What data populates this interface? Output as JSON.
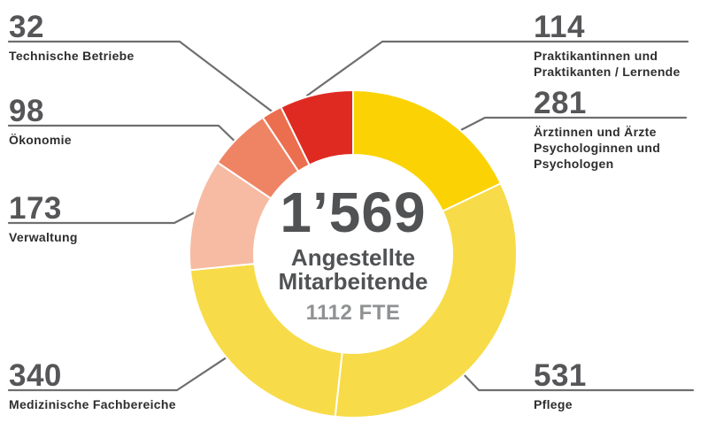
{
  "chart_data": {
    "type": "donut",
    "title": "Angestellte Mitarbeitende",
    "total_value": 1569,
    "center": {
      "total": "1’569",
      "caption_lines": [
        "Angestellte",
        "Mitarbeitende"
      ],
      "fte": "1112 FTE"
    },
    "legend_position": "callouts-around-donut",
    "segments": [
      {
        "id": "aerzte-psychologen",
        "label": "Ärztinnen und Ärzte Psychologinnen und Psychologen",
        "value": 281,
        "color": "#FBD304"
      },
      {
        "id": "pflege",
        "label": "Pflege",
        "value": 531,
        "color": "#F8DB48"
      },
      {
        "id": "medizinische-fachbereiche",
        "label": "Medizinische Fachbereiche",
        "value": 340,
        "color": "#F8DB48"
      },
      {
        "id": "verwaltung",
        "label": "Verwaltung",
        "value": 173,
        "color": "#F6BBA2"
      },
      {
        "id": "oekonomie",
        "label": "Ökonomie",
        "value": 98,
        "color": "#EF8465"
      },
      {
        "id": "technische-betriebe",
        "label": "Technische Betriebe",
        "value": 32,
        "color": "#EB6E4E"
      },
      {
        "id": "praktikanten-lernende",
        "label": "Praktikantinnen und Praktikanten / Lernende",
        "value": 114,
        "color": "#DF2A21"
      }
    ]
  },
  "callouts": [
    {
      "id": "technische-betriebe",
      "value": "32",
      "lines": [
        "Technische Betriebe"
      ]
    },
    {
      "id": "oekonomie",
      "value": "98",
      "lines": [
        "Ökonomie"
      ]
    },
    {
      "id": "verwaltung",
      "value": "173",
      "lines": [
        "Verwaltung"
      ]
    },
    {
      "id": "medizinische-fachbereiche",
      "value": "340",
      "lines": [
        "Medizinische Fachbereiche"
      ]
    },
    {
      "id": "praktikanten-lernende",
      "value": "114",
      "lines": [
        "Praktikantinnen und",
        "Praktikanten / Lernende"
      ]
    },
    {
      "id": "aerzte-psychologen",
      "value": "281",
      "lines": [
        "Ärztinnen und Ärzte",
        "Psychologinnen und",
        "Psychologen"
      ]
    },
    {
      "id": "pflege",
      "value": "531",
      "lines": [
        "Pflege"
      ]
    }
  ],
  "colors": {
    "leader_line": "#6F6F6F",
    "segment_divider": "#FFFFFF",
    "callout_number": "#565659",
    "callout_label": "#2E2E2E",
    "center_text": "#515254",
    "fte_text": "#8F9193",
    "background": "#FFFFFF"
  }
}
